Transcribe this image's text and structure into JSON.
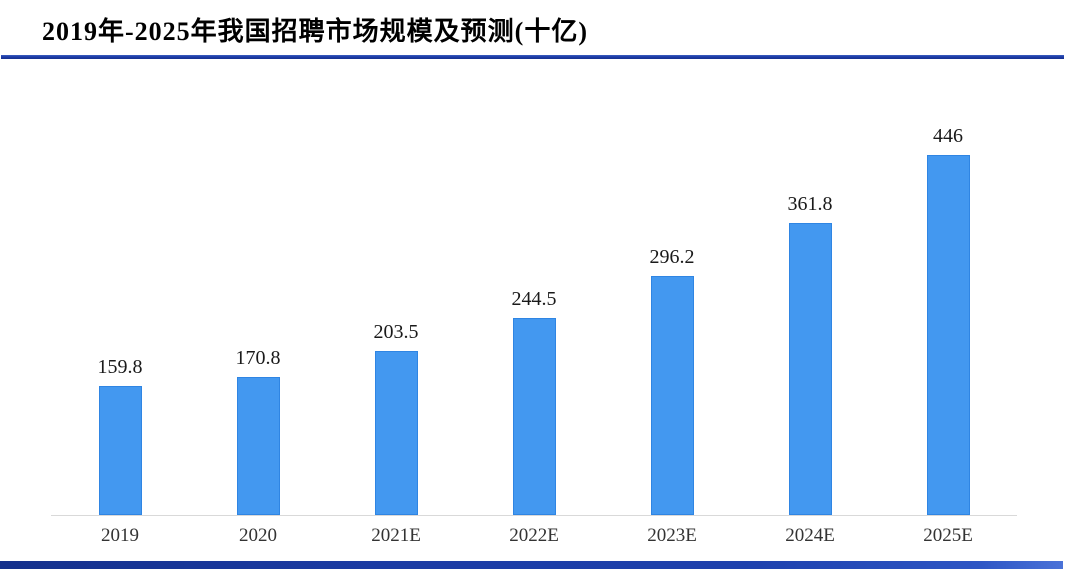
{
  "header": {
    "title": "2019年-2025年我国招聘市场规模及预测(十亿)"
  },
  "chart_data": {
    "type": "bar",
    "title": "2019年-2025年我国招聘市场规模及预测(十亿)",
    "categories": [
      "2019",
      "2020",
      "2021E",
      "2022E",
      "2023E",
      "2024E",
      "2025E"
    ],
    "values": [
      159.8,
      170.8,
      203.5,
      244.5,
      296.2,
      361.8,
      446
    ],
    "value_labels": [
      "159.8",
      "170.8",
      "203.5",
      "244.5",
      "296.2",
      "361.8",
      "446"
    ],
    "xlabel": "",
    "ylabel": "",
    "ylim": [
      0,
      446
    ],
    "grid": false,
    "legend": false,
    "bar_color": "#4398f0",
    "axis_line_color": "#d9d9d9",
    "accent_color": "#1e3ca8"
  }
}
